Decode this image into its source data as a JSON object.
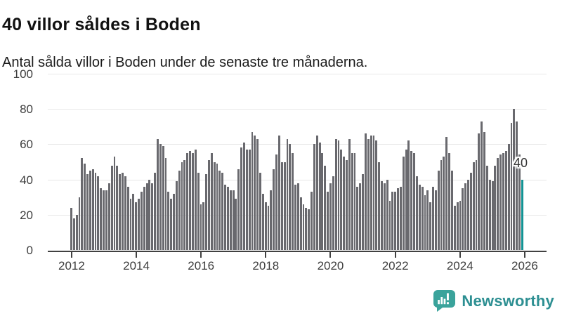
{
  "header": {
    "title": "40 villor såldes i Boden",
    "subtitle": "Antal sålda villor i Boden under de senaste tre månaderna."
  },
  "chart_data": {
    "type": "bar",
    "title": "40 villor såldes i Boden",
    "subtitle": "Antal sålda villor i Boden under de senaste tre månaderna.",
    "frequency": "monthly",
    "x_start": "2012-01",
    "x_end": "2025-12",
    "x_tick_labels": [
      "2012",
      "2014",
      "2016",
      "2018",
      "2020",
      "2022",
      "2024",
      "2026"
    ],
    "y_ticks": [
      0,
      20,
      40,
      60,
      80,
      100
    ],
    "ylim": [
      0,
      100
    ],
    "grid": true,
    "legend": "none",
    "bar_color": "#69696e",
    "highlight": {
      "index": 167,
      "value": 40,
      "label": "40",
      "color": "#129394"
    },
    "values": [
      24,
      18,
      20,
      30,
      52,
      49,
      43,
      45,
      46,
      44,
      42,
      35,
      34,
      34,
      38,
      48,
      53,
      48,
      43,
      44,
      42,
      36,
      29,
      32,
      27,
      29,
      33,
      36,
      38,
      40,
      38,
      44,
      63,
      60,
      59,
      52,
      33,
      29,
      32,
      39,
      45,
      50,
      51,
      55,
      56,
      55,
      57,
      44,
      26,
      27,
      43,
      51,
      55,
      50,
      49,
      45,
      44,
      37,
      36,
      34,
      34,
      29,
      46,
      58,
      61,
      57,
      57,
      67,
      65,
      63,
      44,
      32,
      27,
      25,
      34,
      46,
      54,
      65,
      50,
      50,
      63,
      60,
      55,
      37,
      38,
      30,
      26,
      24,
      23,
      33,
      60,
      65,
      61,
      55,
      48,
      33,
      38,
      42,
      63,
      62,
      57,
      53,
      51,
      63,
      55,
      55,
      36,
      38,
      43,
      66,
      63,
      65,
      65,
      62,
      50,
      39,
      38,
      40,
      28,
      33,
      33,
      35,
      36,
      53,
      57,
      62,
      56,
      55,
      42,
      37,
      36,
      31,
      34,
      27,
      36,
      34,
      45,
      51,
      53,
      64,
      55,
      45,
      25,
      27,
      28,
      35,
      38,
      40,
      44,
      50,
      51,
      66,
      73,
      67,
      48,
      40,
      39,
      48,
      52,
      54,
      55,
      56,
      60,
      72,
      80,
      73,
      54,
      40
    ]
  },
  "footer": {
    "brand": "Newsworthy",
    "logo_icon": "newsworthy-speech-bubble-bar-chart-icon",
    "brand_color": "#2d8f92",
    "bubble_color": "#3aa39b"
  }
}
